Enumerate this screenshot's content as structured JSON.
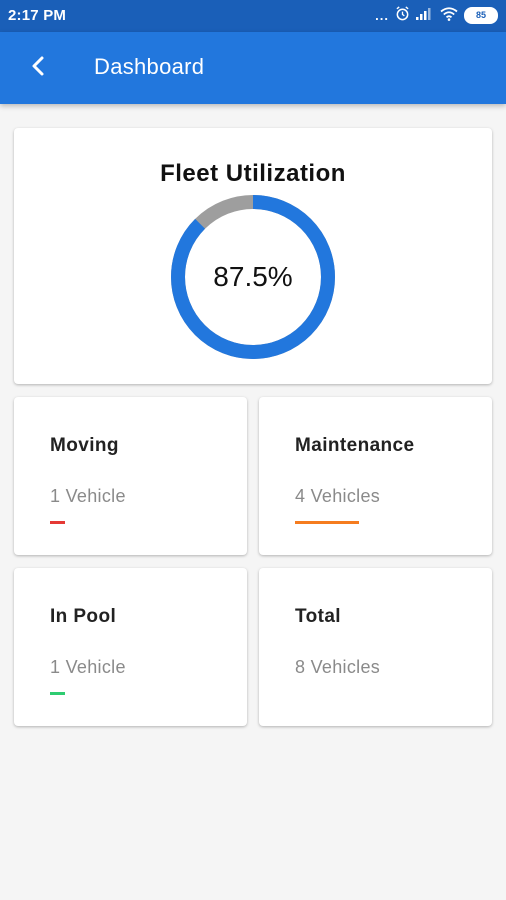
{
  "status_bar": {
    "time": "2:17 PM",
    "overflow": "...",
    "battery": "85",
    "icons": [
      "alarm-icon",
      "signal-icon",
      "wifi-icon",
      "battery-icon"
    ]
  },
  "app_bar": {
    "title": "Dashboard",
    "back_icon": "chevron-left-icon",
    "color": "#2277dd"
  },
  "fleet": {
    "title": "Fleet Utilization",
    "percent_label": "87.5%",
    "utilization": 0.875,
    "used_color": "#2277dd",
    "remaining_color": "#9e9e9e"
  },
  "stats": {
    "moving": {
      "title": "Moving",
      "value": "1 Vehicle",
      "accent": "#e53935"
    },
    "maintenance": {
      "title": "Maintenance",
      "value": "4 Vehicles",
      "accent": "#f57c1f"
    },
    "in_pool": {
      "title": "In Pool",
      "value": "1 Vehicle",
      "accent": "#2ecc71"
    },
    "total": {
      "title": "Total",
      "value": "8 Vehicles"
    }
  }
}
